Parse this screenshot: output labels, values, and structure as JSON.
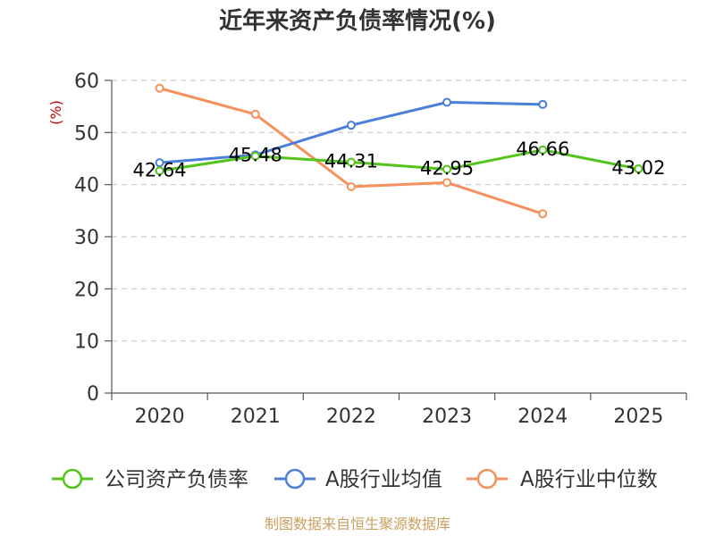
{
  "chart_data": {
    "type": "line",
    "title": "近年来资产负债率情况(%)",
    "ylabel": "(%)",
    "xlabel": "",
    "ylim": [
      0,
      60
    ],
    "yticks": [
      0,
      10,
      20,
      30,
      40,
      50,
      60
    ],
    "categories": [
      "2020",
      "2021",
      "2022",
      "2023",
      "2024",
      "2025"
    ],
    "grid": true,
    "legend_position": "bottom",
    "series": [
      {
        "name": "公司资产负债率",
        "color": "#52c41a",
        "values": [
          42.64,
          45.48,
          44.31,
          42.95,
          46.66,
          43.02
        ],
        "labels": [
          "42.64",
          "45.48",
          "44.31",
          "42.95",
          "46.66",
          "43.02"
        ]
      },
      {
        "name": "A股行业均值",
        "color": "#4a7fdc",
        "values": [
          44.2,
          45.7,
          51.4,
          55.8,
          55.4,
          null
        ]
      },
      {
        "name": "A股行业中位数",
        "color": "#f5915c",
        "values": [
          58.5,
          53.5,
          39.6,
          40.4,
          34.4,
          null
        ]
      }
    ]
  },
  "source_text": "制图数据来自恒生聚源数据库"
}
